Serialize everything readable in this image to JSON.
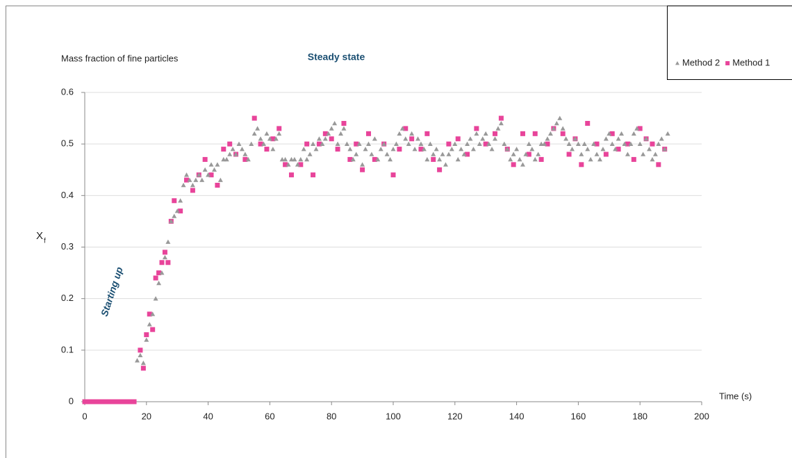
{
  "chart_data": {
    "type": "scatter",
    "title": "Mass fraction of fine particles",
    "y_label": "X",
    "y_label_sub": "f",
    "x_label": "Time (s)",
    "annotations": [
      "Steady state",
      "Starting up"
    ],
    "xlim": [
      0,
      200
    ],
    "xticks": [
      0,
      20,
      40,
      60,
      80,
      100,
      120,
      140,
      160,
      180,
      200
    ],
    "ylim": [
      0,
      0.6
    ],
    "yticks": [
      0,
      0.1,
      0.2,
      0.3,
      0.4,
      0.5,
      0.6
    ],
    "grid": true,
    "legend": "top-right",
    "series": [
      {
        "name": "Method 2",
        "color": "#999999",
        "marker": "triangle",
        "x": [
          17,
          18,
          19,
          20,
          21,
          22,
          23,
          24,
          25,
          26,
          27,
          28,
          29,
          30,
          31,
          32,
          33,
          34,
          35,
          36,
          37,
          38,
          39,
          40,
          41,
          42,
          43,
          44,
          45,
          46,
          47,
          48,
          49,
          50,
          51,
          52,
          53,
          54,
          55,
          56,
          57,
          58,
          59,
          60,
          61,
          62,
          63,
          64,
          65,
          66,
          67,
          68,
          69,
          70,
          71,
          72,
          73,
          74,
          75,
          76,
          77,
          78,
          79,
          80,
          81,
          82,
          83,
          84,
          85,
          86,
          87,
          88,
          89,
          90,
          91,
          92,
          93,
          94,
          95,
          96,
          97,
          98,
          99,
          100,
          101,
          102,
          103,
          104,
          105,
          106,
          107,
          108,
          109,
          110,
          111,
          112,
          113,
          114,
          115,
          116,
          117,
          118,
          119,
          120,
          121,
          122,
          123,
          124,
          125,
          126,
          127,
          128,
          129,
          130,
          131,
          132,
          133,
          134,
          135,
          136,
          137,
          138,
          139,
          140,
          141,
          142,
          143,
          144,
          145,
          146,
          147,
          148,
          149,
          150,
          151,
          152,
          153,
          154,
          155,
          156,
          157,
          158,
          159,
          160,
          161,
          162,
          163,
          164,
          165,
          166,
          167,
          168,
          169,
          170,
          171,
          172,
          173,
          174,
          175,
          176,
          177,
          178,
          179,
          180,
          181,
          182,
          183,
          184,
          185,
          186,
          187,
          188,
          189
        ],
        "values": [
          0.08,
          0.09,
          0.075,
          0.12,
          0.15,
          0.17,
          0.2,
          0.23,
          0.25,
          0.28,
          0.31,
          0.35,
          0.36,
          0.37,
          0.39,
          0.42,
          0.44,
          0.43,
          0.42,
          0.43,
          0.44,
          0.43,
          0.45,
          0.44,
          0.46,
          0.45,
          0.46,
          0.43,
          0.47,
          0.47,
          0.48,
          0.49,
          0.48,
          0.5,
          0.49,
          0.48,
          0.47,
          0.5,
          0.52,
          0.53,
          0.51,
          0.5,
          0.52,
          0.51,
          0.49,
          0.51,
          0.52,
          0.47,
          0.47,
          0.46,
          0.47,
          0.47,
          0.46,
          0.47,
          0.49,
          0.47,
          0.48,
          0.5,
          0.49,
          0.51,
          0.5,
          0.51,
          0.52,
          0.53,
          0.54,
          0.5,
          0.52,
          0.53,
          0.5,
          0.49,
          0.47,
          0.48,
          0.5,
          0.46,
          0.49,
          0.5,
          0.48,
          0.51,
          0.47,
          0.49,
          0.5,
          0.48,
          0.47,
          0.49,
          0.5,
          0.52,
          0.53,
          0.51,
          0.5,
          0.52,
          0.49,
          0.51,
          0.5,
          0.49,
          0.47,
          0.5,
          0.48,
          0.49,
          0.47,
          0.48,
          0.46,
          0.48,
          0.49,
          0.5,
          0.47,
          0.49,
          0.48,
          0.5,
          0.51,
          0.49,
          0.52,
          0.5,
          0.51,
          0.52,
          0.5,
          0.49,
          0.51,
          0.53,
          0.54,
          0.5,
          0.49,
          0.47,
          0.48,
          0.49,
          0.47,
          0.46,
          0.48,
          0.5,
          0.49,
          0.47,
          0.48,
          0.5,
          0.5,
          0.51,
          0.52,
          0.53,
          0.54,
          0.55,
          0.53,
          0.51,
          0.5,
          0.49,
          0.51,
          0.5,
          0.48,
          0.5,
          0.49,
          0.47,
          0.5,
          0.48,
          0.47,
          0.49,
          0.51,
          0.52,
          0.5,
          0.49,
          0.51,
          0.52,
          0.5,
          0.48,
          0.5,
          0.52,
          0.53,
          0.5,
          0.48,
          0.51,
          0.49,
          0.47,
          0.48,
          0.5,
          0.51,
          0.49,
          0.52
        ]
      },
      {
        "name": "Method 1",
        "color": "#e8449a",
        "marker": "square",
        "x": [
          0,
          1,
          2,
          3,
          4,
          5,
          6,
          7,
          8,
          9,
          10,
          11,
          12,
          13,
          14,
          15,
          16,
          18,
          19,
          20,
          21,
          22,
          23,
          24,
          25,
          26,
          27,
          28,
          29,
          31,
          33,
          35,
          37,
          39,
          41,
          43,
          45,
          47,
          49,
          52,
          55,
          57,
          59,
          61,
          63,
          65,
          67,
          70,
          72,
          74,
          76,
          78,
          80,
          82,
          84,
          86,
          88,
          90,
          92,
          94,
          97,
          100,
          102,
          104,
          106,
          109,
          111,
          113,
          115,
          118,
          121,
          124,
          127,
          130,
          133,
          135,
          137,
          139,
          142,
          144,
          146,
          148,
          150,
          152,
          155,
          157,
          159,
          161,
          163,
          166,
          169,
          171,
          173,
          176,
          178,
          180,
          182,
          184,
          186,
          188
        ],
        "values": [
          0,
          0,
          0,
          0,
          0,
          0,
          0,
          0,
          0,
          0,
          0,
          0,
          0,
          0,
          0,
          0,
          0,
          0.1,
          0.065,
          0.13,
          0.17,
          0.14,
          0.24,
          0.25,
          0.27,
          0.29,
          0.27,
          0.35,
          0.39,
          0.37,
          0.43,
          0.41,
          0.44,
          0.47,
          0.44,
          0.42,
          0.49,
          0.5,
          0.48,
          0.47,
          0.55,
          0.5,
          0.49,
          0.51,
          0.53,
          0.46,
          0.44,
          0.46,
          0.5,
          0.44,
          0.5,
          0.52,
          0.51,
          0.49,
          0.54,
          0.47,
          0.5,
          0.45,
          0.52,
          0.47,
          0.5,
          0.44,
          0.49,
          0.53,
          0.51,
          0.49,
          0.52,
          0.47,
          0.45,
          0.5,
          0.51,
          0.48,
          0.53,
          0.5,
          0.52,
          0.55,
          0.49,
          0.46,
          0.52,
          0.48,
          0.52,
          0.47,
          0.5,
          0.53,
          0.52,
          0.48,
          0.51,
          0.46,
          0.54,
          0.5,
          0.48,
          0.52,
          0.49,
          0.5,
          0.47,
          0.53,
          0.51,
          0.5,
          0.46,
          0.49
        ]
      }
    ]
  }
}
